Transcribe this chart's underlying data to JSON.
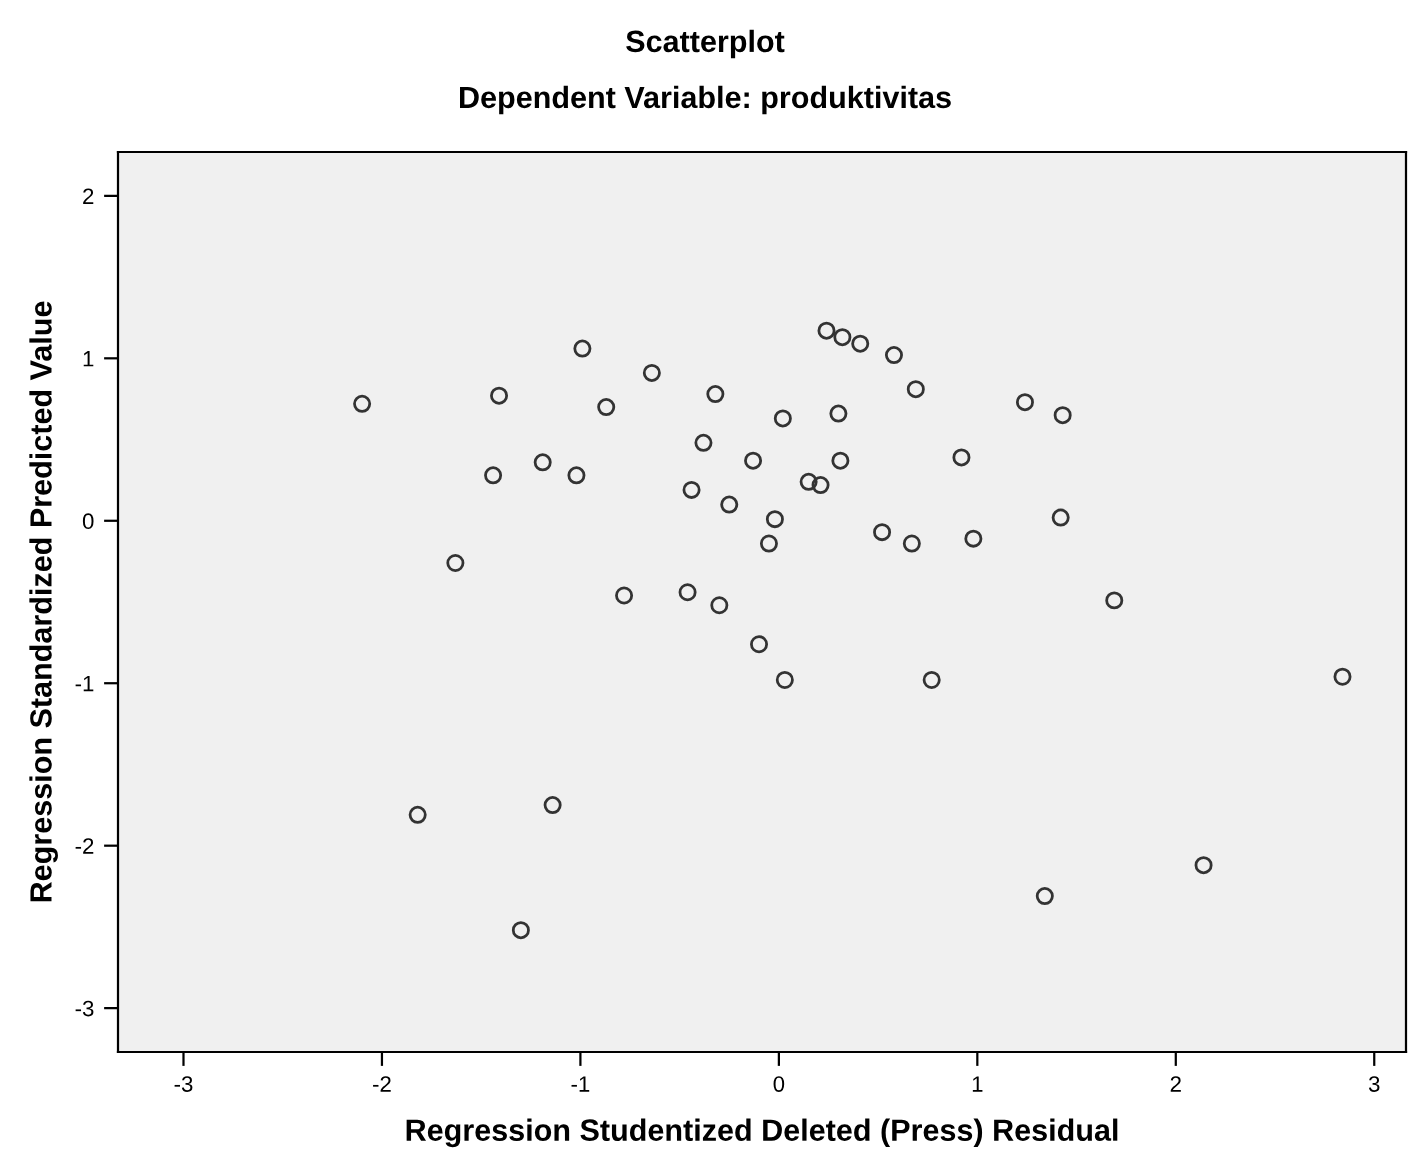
{
  "chart_data": {
    "type": "scatter",
    "title": "Scatterplot",
    "subtitle": "Dependent Variable: produktivitas",
    "xlabel": "Regression Studentized Deleted (Press) Residual",
    "ylabel": "Regression Standardized Predicted Value",
    "xlim": [
      -3.33,
      3.16
    ],
    "ylim": [
      -3.27,
      2.27
    ],
    "xticks": [
      -3,
      -2,
      -1,
      0,
      1,
      2,
      3
    ],
    "yticks": [
      -3,
      -2,
      -1,
      0,
      1,
      2
    ],
    "grid": false,
    "legend": false,
    "marker": "circle",
    "series": [
      {
        "color": "#333333",
        "x": [
          -2.1,
          -1.41,
          -0.99,
          -0.64,
          -0.32,
          -0.87,
          -0.38,
          -1.44,
          -1.19,
          -1.02,
          -0.44,
          -0.25,
          -0.13,
          -1.63,
          -0.78,
          -0.46,
          -0.3,
          -0.1,
          0.02,
          0.24,
          0.32,
          0.41,
          0.58,
          0.69,
          0.3,
          0.31,
          0.15,
          0.21,
          0.92,
          1.24,
          1.43,
          1.42,
          -0.02,
          -0.05,
          0.52,
          0.67,
          0.98,
          1.69,
          0.03,
          0.77,
          2.84,
          -1.82,
          -1.14,
          -1.3,
          1.34,
          2.14
        ],
        "values": [
          0.72,
          0.77,
          1.06,
          0.91,
          0.78,
          0.7,
          0.48,
          0.28,
          0.36,
          0.28,
          0.19,
          0.1,
          0.37,
          -0.26,
          -0.46,
          -0.44,
          -0.52,
          -0.76,
          0.63,
          1.17,
          1.13,
          1.09,
          1.02,
          0.81,
          0.66,
          0.37,
          0.24,
          0.22,
          0.39,
          0.73,
          0.65,
          0.02,
          0.01,
          -0.14,
          -0.07,
          -0.14,
          -0.11,
          -0.49,
          -0.98,
          -0.98,
          -0.96,
          -1.81,
          -1.75,
          -2.52,
          -2.31,
          -2.12
        ]
      }
    ]
  }
}
